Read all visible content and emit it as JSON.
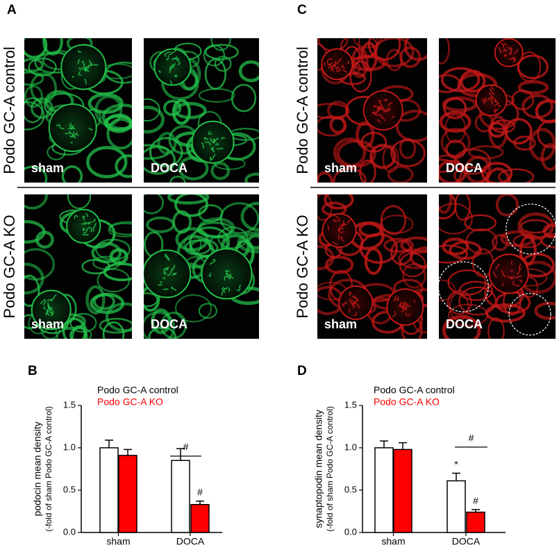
{
  "panels": {
    "A": {
      "letter": "A",
      "rows": [
        "Podo GC-A control",
        "Podo GC-A KO"
      ],
      "labels": [
        [
          "sham",
          "DOCA"
        ],
        [
          "sham",
          "DOCA"
        ]
      ]
    },
    "C": {
      "letter": "C",
      "rows": [
        "Podo GC-A control",
        "Podo GC-A KO"
      ],
      "labels": [
        [
          "sham",
          "DOCA"
        ],
        [
          "sham",
          "DOCA"
        ]
      ]
    },
    "B": {
      "letter": "B"
    },
    "D": {
      "letter": "D"
    }
  },
  "chart_data": [
    {
      "type": "bar",
      "ylabel": [
        "podocin mean density",
        "(-fold of sham Podo GC-A control)"
      ],
      "categories": [
        "sham",
        "DOCA"
      ],
      "series": [
        {
          "name": "Podo GC-A control",
          "color": "#ffffff",
          "values": [
            1.0,
            0.85
          ],
          "errors": [
            0.09,
            0.14
          ]
        },
        {
          "name": "Podo GC-A KO",
          "color": "#ff0000",
          "values": [
            0.91,
            0.33
          ],
          "errors": [
            0.07,
            0.04
          ]
        }
      ],
      "ylim": [
        0,
        1.5
      ],
      "yticks": [
        {
          "value": 0,
          "label": "0.0"
        },
        0.5,
        {
          "value": 1,
          "label": "1.0"
        },
        1.5
      ],
      "annotations": [
        "#",
        "#"
      ]
    },
    {
      "type": "bar",
      "ylabel": [
        "synaptopodin mean density",
        "(-fold of sham Podo GC-A control)"
      ],
      "categories": [
        "sham",
        "DOCA"
      ],
      "series": [
        {
          "name": "Podo GC-A control",
          "color": "#ffffff",
          "values": [
            1.0,
            0.61
          ],
          "errors": [
            0.08,
            0.09
          ]
        },
        {
          "name": "Podo GC-A KO",
          "color": "#ff0000",
          "values": [
            0.98,
            0.24
          ],
          "errors": [
            0.08,
            0.03
          ]
        }
      ],
      "ylim": [
        0,
        1.5
      ],
      "yticks": [
        {
          "value": 0,
          "label": "0.0"
        },
        0.5,
        {
          "value": 1,
          "label": "1.0"
        },
        1.5
      ],
      "annotations": [
        "#",
        "*",
        "#"
      ]
    }
  ]
}
